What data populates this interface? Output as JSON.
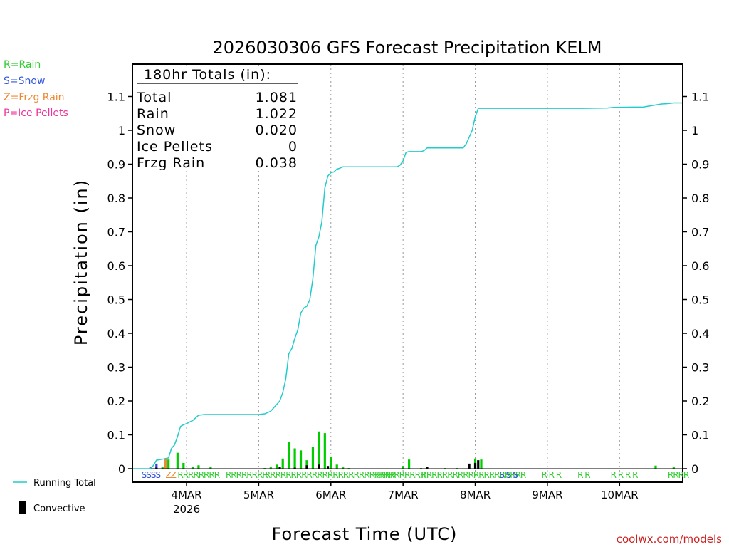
{
  "chart_data": {
    "type": "bar",
    "title": "2026030306 GFS Forecast Precipitation KELM",
    "ylabel": "Precipitation  (in)",
    "xlabel": "Forecast Time (UTC)",
    "ylim": [
      0,
      1.19
    ],
    "xlim_hours": [
      0,
      183
    ],
    "y_ticks": [
      {
        "value": 0,
        "label": "0"
      },
      {
        "value": 0.1,
        "label": "0.1"
      },
      {
        "value": 0.2,
        "label": "0.2"
      },
      {
        "value": 0.3,
        "label": "0.3"
      },
      {
        "value": 0.4,
        "label": "0.4"
      },
      {
        "value": 0.5,
        "label": "0.5"
      },
      {
        "value": 0.6,
        "label": "0.6"
      },
      {
        "value": 0.7,
        "label": "0.7"
      },
      {
        "value": 0.8,
        "label": "0.8"
      },
      {
        "value": 0.9,
        "label": "0.9"
      },
      {
        "value": 1.0,
        "label": "1"
      },
      {
        "value": 1.1,
        "label": "1.1"
      }
    ],
    "x_ticks": [
      {
        "hour": 18,
        "label": "4MAR",
        "sub": "2026"
      },
      {
        "hour": 42,
        "label": "5MAR"
      },
      {
        "hour": 66,
        "label": "6MAR"
      },
      {
        "hour": 90,
        "label": "7MAR"
      },
      {
        "hour": 114,
        "label": "8MAR"
      },
      {
        "hour": 138,
        "label": "9MAR"
      },
      {
        "hour": 162,
        "label": "10MAR"
      }
    ],
    "legend": [
      {
        "text": "R=Rain",
        "color": "#33cc33"
      },
      {
        "text": "S=Snow",
        "color": "#3355dd"
      },
      {
        "text": "Z=Frzg Rain",
        "color": "#ee8833"
      },
      {
        "text": "P=Ice Pellets",
        "color": "#ee3399"
      }
    ],
    "line_legend": {
      "running_total": "Running Total",
      "convective": "Convective"
    },
    "totals_box": {
      "header": "180hr Totals (in):",
      "rows": [
        {
          "label": "Total",
          "value": "1.081"
        },
        {
          "label": "Rain",
          "value": "1.022"
        },
        {
          "label": "Snow",
          "value": "0.020"
        },
        {
          "label": "Ice Pellets",
          "value": "0"
        },
        {
          "label": "Frzg Rain",
          "value": "0.038"
        }
      ]
    },
    "colors": {
      "rain": "#00cc00",
      "snow": "#3344dd",
      "frzg": "#ee8833",
      "convective": "#000000",
      "running_total": "#22cccc",
      "grid": "#999999"
    },
    "running_total": [
      [
        0,
        0
      ],
      [
        6,
        0
      ],
      [
        7,
        0.01
      ],
      [
        8,
        0.025
      ],
      [
        10,
        0.028
      ],
      [
        12,
        0.032
      ],
      [
        13,
        0.06
      ],
      [
        14,
        0.07
      ],
      [
        15,
        0.095
      ],
      [
        16,
        0.125
      ],
      [
        17,
        0.13
      ],
      [
        18,
        0.133
      ],
      [
        19,
        0.138
      ],
      [
        20,
        0.142
      ],
      [
        21,
        0.15
      ],
      [
        22,
        0.158
      ],
      [
        24,
        0.16
      ],
      [
        30,
        0.16
      ],
      [
        36,
        0.16
      ],
      [
        42,
        0.16
      ],
      [
        44,
        0.162
      ],
      [
        46,
        0.17
      ],
      [
        47,
        0.18
      ],
      [
        48,
        0.19
      ],
      [
        49,
        0.2
      ],
      [
        50,
        0.225
      ],
      [
        51,
        0.265
      ],
      [
        52,
        0.34
      ],
      [
        53,
        0.355
      ],
      [
        54,
        0.385
      ],
      [
        55,
        0.41
      ],
      [
        56,
        0.46
      ],
      [
        57,
        0.475
      ],
      [
        58,
        0.48
      ],
      [
        59,
        0.5
      ],
      [
        60,
        0.56
      ],
      [
        61,
        0.66
      ],
      [
        62,
        0.685
      ],
      [
        63,
        0.73
      ],
      [
        64,
        0.83
      ],
      [
        65,
        0.865
      ],
      [
        66,
        0.875
      ],
      [
        67,
        0.877
      ],
      [
        68,
        0.885
      ],
      [
        69,
        0.888
      ],
      [
        70,
        0.892
      ],
      [
        72,
        0.892
      ],
      [
        78,
        0.892
      ],
      [
        84,
        0.892
      ],
      [
        88,
        0.892
      ],
      [
        89,
        0.897
      ],
      [
        90,
        0.91
      ],
      [
        91,
        0.935
      ],
      [
        92,
        0.937
      ],
      [
        96,
        0.937
      ],
      [
        97,
        0.94
      ],
      [
        98,
        0.948
      ],
      [
        100,
        0.948
      ],
      [
        110,
        0.948
      ],
      [
        111,
        0.96
      ],
      [
        112,
        0.98
      ],
      [
        113,
        1.0
      ],
      [
        114,
        1.04
      ],
      [
        115,
        1.065
      ],
      [
        120,
        1.065
      ],
      [
        130,
        1.065
      ],
      [
        150,
        1.065
      ],
      [
        158,
        1.066
      ],
      [
        160,
        1.068
      ],
      [
        170,
        1.069
      ],
      [
        172,
        1.072
      ],
      [
        174,
        1.075
      ],
      [
        176,
        1.078
      ],
      [
        178,
        1.079
      ],
      [
        180,
        1.081
      ],
      [
        183,
        1.081
      ]
    ],
    "bars_6h_rain": [
      [
        10,
        0.004
      ],
      [
        12,
        0.027
      ],
      [
        15,
        0.047
      ],
      [
        17,
        0.017
      ],
      [
        20,
        0.005
      ],
      [
        22,
        0.01
      ],
      [
        26,
        0.005
      ],
      [
        35,
        0.001
      ],
      [
        44,
        0.002
      ],
      [
        46,
        0.004
      ],
      [
        48,
        0.012
      ],
      [
        50,
        0.03
      ],
      [
        52,
        0.08
      ],
      [
        54,
        0.06
      ],
      [
        56,
        0.054
      ],
      [
        58,
        0.025
      ],
      [
        60,
        0.065
      ],
      [
        62,
        0.11
      ],
      [
        64,
        0.105
      ],
      [
        66,
        0.035
      ],
      [
        68,
        0.012
      ],
      [
        70,
        0.004
      ],
      [
        72,
        0.002
      ],
      [
        90,
        0.008
      ],
      [
        92,
        0.027
      ],
      [
        96,
        0.002
      ],
      [
        98,
        0.005
      ],
      [
        104,
        0.002
      ],
      [
        108,
        0.002
      ],
      [
        114,
        0.03
      ],
      [
        116,
        0.027
      ],
      [
        174,
        0.009
      ],
      [
        180,
        0.004
      ]
    ],
    "bars_6h_snow": [
      [
        6,
        0.004
      ],
      [
        8,
        0.015
      ]
    ],
    "bars_6h_frzg": [
      [
        11,
        0.028
      ]
    ],
    "bars_convective": [
      [
        8,
        0.003
      ],
      [
        49,
        0.006
      ],
      [
        54,
        0.003
      ],
      [
        58,
        0.01
      ],
      [
        62,
        0.012
      ],
      [
        65,
        0.008
      ],
      [
        98,
        0.006
      ],
      [
        112,
        0.015
      ],
      [
        114,
        0.017
      ],
      [
        115,
        0.025
      ]
    ],
    "ptype_strip": [
      {
        "hour": 3,
        "text": "SSSS",
        "color": "#3355dd"
      },
      {
        "hour": 11,
        "text": "ZZ",
        "color": "#ee8833"
      },
      {
        "hour": 15,
        "text": "RRRRRRRR",
        "color": "#33cc33"
      },
      {
        "hour": 31,
        "text": "RRRRRRRR",
        "color": "#33cc33"
      },
      {
        "hour": 44,
        "text": "RRRRRRRRRRRRRRRRRRRRRRRRR",
        "color": "#33cc33"
      },
      {
        "hour": 80,
        "text": "RRRRRRRRRR",
        "color": "#33cc33"
      },
      {
        "hour": 96,
        "text": "RRRRRRRRRRRRRRRRRRRR",
        "color": "#33cc33"
      },
      {
        "hour": 122,
        "text": "S S S",
        "color": "#3355dd"
      },
      {
        "hour": 136,
        "text": "R R R",
        "color": "#33cc33"
      },
      {
        "hour": 148,
        "text": "R R",
        "color": "#33cc33"
      },
      {
        "hour": 159,
        "text": "R R R R",
        "color": "#33cc33"
      },
      {
        "hour": 178,
        "text": "RRRR",
        "color": "#33cc33"
      }
    ],
    "credit": "coolwx.com/models"
  }
}
